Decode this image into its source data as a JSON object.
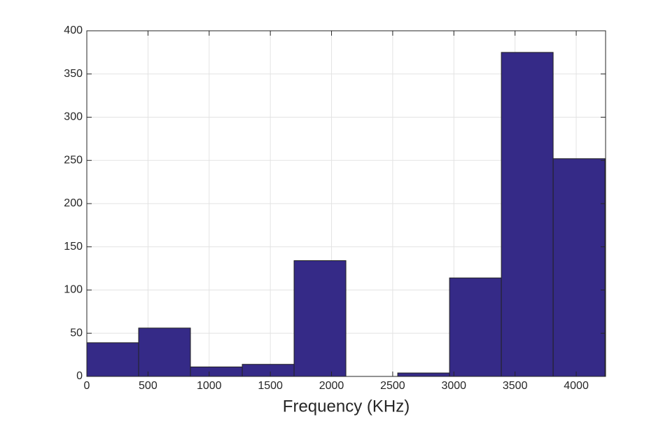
{
  "chart_data": {
    "type": "histogram",
    "xlabel": "Frequency (KHz)",
    "bins": [
      0,
      423.5,
      847,
      1270.5,
      1694,
      2117.5,
      2541,
      2964.5,
      3388,
      3811.5,
      4235
    ],
    "values": [
      39,
      56,
      11,
      14,
      134,
      0,
      4,
      114,
      375,
      252
    ],
    "color": "#352a87",
    "xlim": [
      0,
      4240
    ],
    "xticks": [
      0,
      500,
      1000,
      1500,
      2000,
      2500,
      3000,
      3500,
      4000
    ],
    "ylim": [
      0,
      400
    ],
    "yticks": [
      0,
      50,
      100,
      150,
      200,
      250,
      300,
      350,
      400
    ],
    "grid": true
  }
}
